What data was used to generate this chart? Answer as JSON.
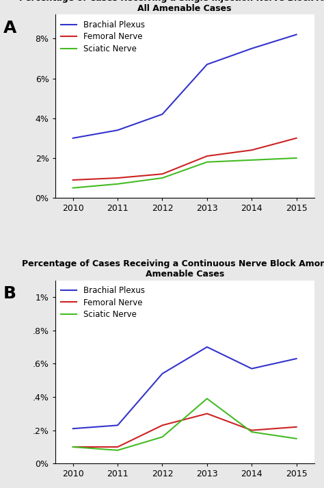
{
  "years": [
    2010,
    2011,
    2012,
    2013,
    2014,
    2015
  ],
  "panel_A": {
    "title_line1": "Percentage of Cases Receiving a Single Injection Nerve Block Among",
    "title_line2": "All Amenable Cases",
    "brachial_plexus": [
      3.0,
      3.4,
      4.2,
      6.7,
      7.5,
      8.2
    ],
    "femoral_nerve": [
      0.9,
      1.0,
      1.2,
      2.1,
      2.4,
      3.0
    ],
    "sciatic_nerve": [
      0.5,
      0.7,
      1.0,
      1.8,
      1.9,
      2.0
    ],
    "ylim": [
      0,
      9.2
    ],
    "yticks": [
      0,
      2,
      4,
      6,
      8
    ],
    "ytick_labels": [
      "0%",
      "2%",
      "4%",
      "6%",
      "8%"
    ]
  },
  "panel_B": {
    "title_line1": "Percentage of Cases Receiving a Continuous Nerve Block Among All",
    "title_line2": "Amenable Cases",
    "brachial_plexus": [
      0.21,
      0.23,
      0.54,
      0.7,
      0.57,
      0.63
    ],
    "femoral_nerve": [
      0.1,
      0.1,
      0.23,
      0.3,
      0.2,
      0.22
    ],
    "sciatic_nerve": [
      0.1,
      0.08,
      0.16,
      0.39,
      0.19,
      0.15
    ],
    "ylim": [
      0,
      1.1
    ],
    "yticks": [
      0,
      0.2,
      0.4,
      0.6,
      0.8,
      1.0
    ],
    "ytick_labels": [
      "0%",
      ".2%",
      ".4%",
      ".6%",
      ".8%",
      "1%"
    ]
  },
  "colors": {
    "brachial_plexus": "#3333cc",
    "femoral_nerve": "#cc2222",
    "sciatic_nerve": "#44bb22"
  },
  "legend_labels": [
    "Brachial Plexus",
    "Femoral Nerve",
    "Sciatic Nerve"
  ],
  "label_A": "A",
  "label_B": "B",
  "bg_color": "#e8e8e8",
  "plot_bg_color": "#ffffff",
  "linewidth": 1.5,
  "title_fontsize": 9,
  "tick_fontsize": 9,
  "legend_fontsize": 8.5,
  "panel_label_fontsize": 18
}
